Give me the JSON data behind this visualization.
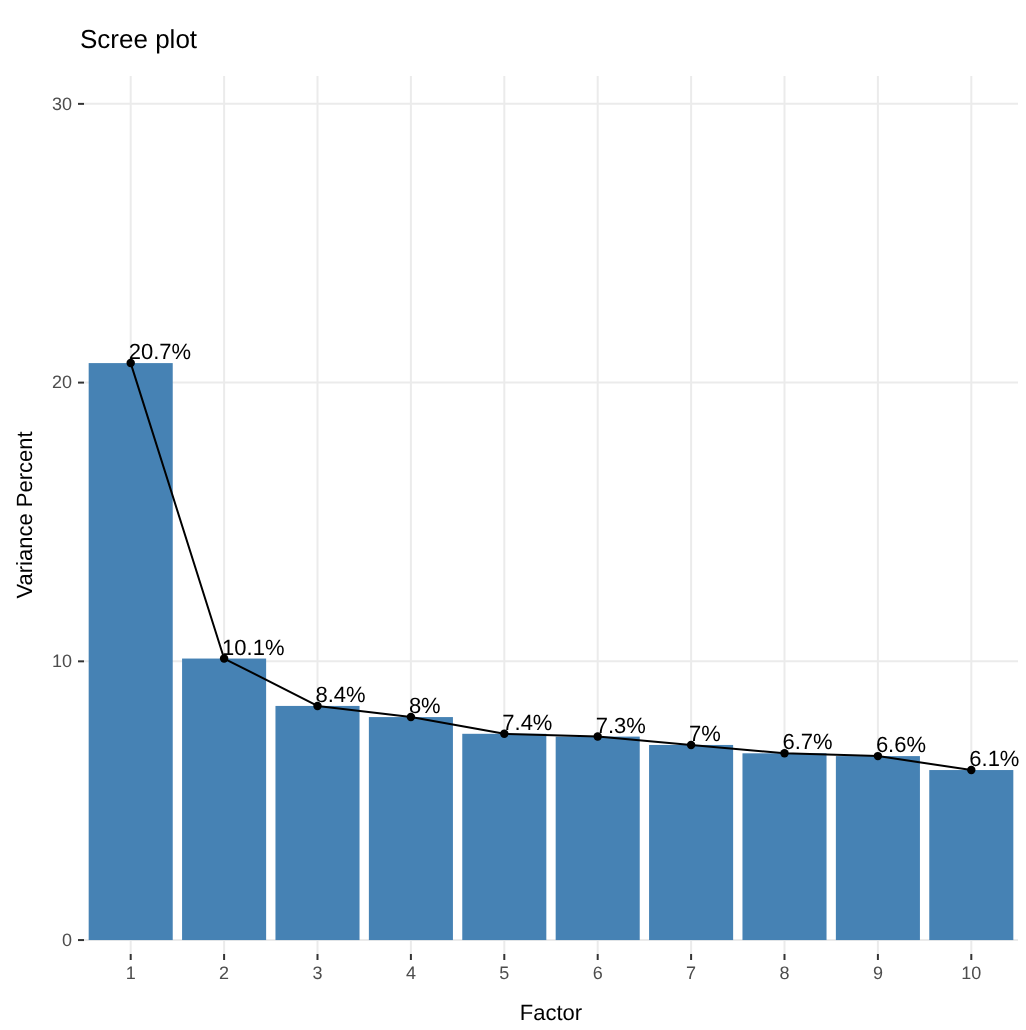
{
  "chart_data": {
    "type": "bar",
    "title": "Scree plot",
    "xlabel": "Factor",
    "ylabel": "Variance Percent",
    "categories": [
      "1",
      "2",
      "3",
      "4",
      "5",
      "6",
      "7",
      "8",
      "9",
      "10"
    ],
    "series": [
      {
        "color": "#4682b4",
        "values": [
          20.7,
          10.1,
          8.4,
          8,
          7.4,
          7.3,
          7,
          6.7,
          6.6,
          6.1
        ]
      },
      {
        "type": "line",
        "color": "#000000",
        "marker": "circle",
        "values": [
          20.7,
          10.1,
          8.4,
          8,
          7.4,
          7.3,
          7,
          6.7,
          6.6,
          6.1
        ],
        "value_labels": [
          "20.7%",
          "10.1%",
          "8.4%",
          "8%",
          "7.4%",
          "7.3%",
          "7%",
          "6.7%",
          "6.6%",
          "6.1%"
        ]
      }
    ],
    "ylim": [
      -0.5,
      31
    ],
    "yticks": [
      0,
      10,
      20,
      30
    ],
    "grid": true
  }
}
